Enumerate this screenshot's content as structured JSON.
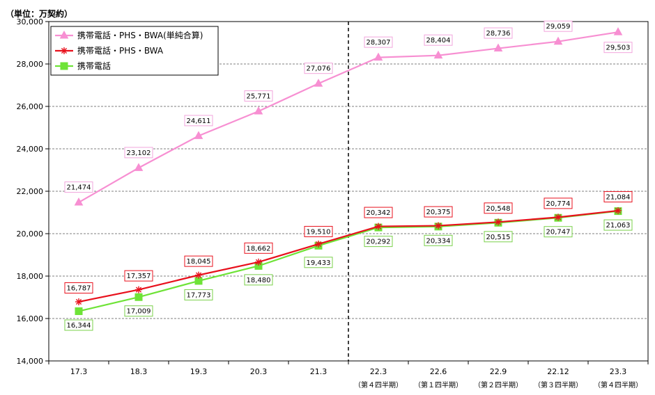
{
  "chart_data": {
    "type": "line",
    "unit_label": "（単位：万契約）",
    "categories": [
      "17.3",
      "18.3",
      "19.3",
      "20.3",
      "21.3",
      "22.3",
      "22.6",
      "22.9",
      "22.12",
      "23.3"
    ],
    "category_sublabels": [
      "",
      "",
      "",
      "",
      "",
      "（第４四半期）",
      "（第１四半期）",
      "（第２四半期）",
      "（第３四半期）",
      "（第４四半期）"
    ],
    "ylim": [
      14000,
      30000
    ],
    "yticks": [
      "14,000",
      "16,000",
      "18,000",
      "20,000",
      "22,000",
      "24,000",
      "26,000",
      "28,000",
      "30,000"
    ],
    "divider_after_category": "21.3",
    "grid": "horizontal dashed",
    "legend": "top-left",
    "series": [
      {
        "name": "携帯電話・PHS・BWA(単純合算)",
        "color": "#f78fd2",
        "marker": "triangle",
        "values": [
          21474,
          23102,
          24611,
          25771,
          27076,
          28307,
          28404,
          28736,
          29059,
          29503
        ],
        "labels": [
          "21,474",
          "23,102",
          "24,611",
          "25,771",
          "27,076",
          "28,307",
          "28,404",
          "28,736",
          "29,059",
          "29,503"
        ]
      },
      {
        "name": "携帯電話・PHS・BWA",
        "color": "#e8101c",
        "marker": "asterisk",
        "values": [
          16787,
          17357,
          18045,
          18662,
          19510,
          20342,
          20375,
          20548,
          20774,
          21084
        ],
        "labels": [
          "16,787",
          "17,357",
          "18,045",
          "18,662",
          "19,510",
          "20,342",
          "20,375",
          "20,548",
          "20,774",
          "21,084"
        ]
      },
      {
        "name": "携帯電話",
        "color": "#6ee337",
        "marker": "square",
        "values": [
          16344,
          17009,
          17773,
          18480,
          19433,
          20292,
          20334,
          20515,
          20747,
          21063
        ],
        "labels": [
          "16,344",
          "17,009",
          "17,773",
          "18,480",
          "19,433",
          "20,292",
          "20,334",
          "20,515",
          "20,747",
          "21,063"
        ]
      }
    ]
  }
}
